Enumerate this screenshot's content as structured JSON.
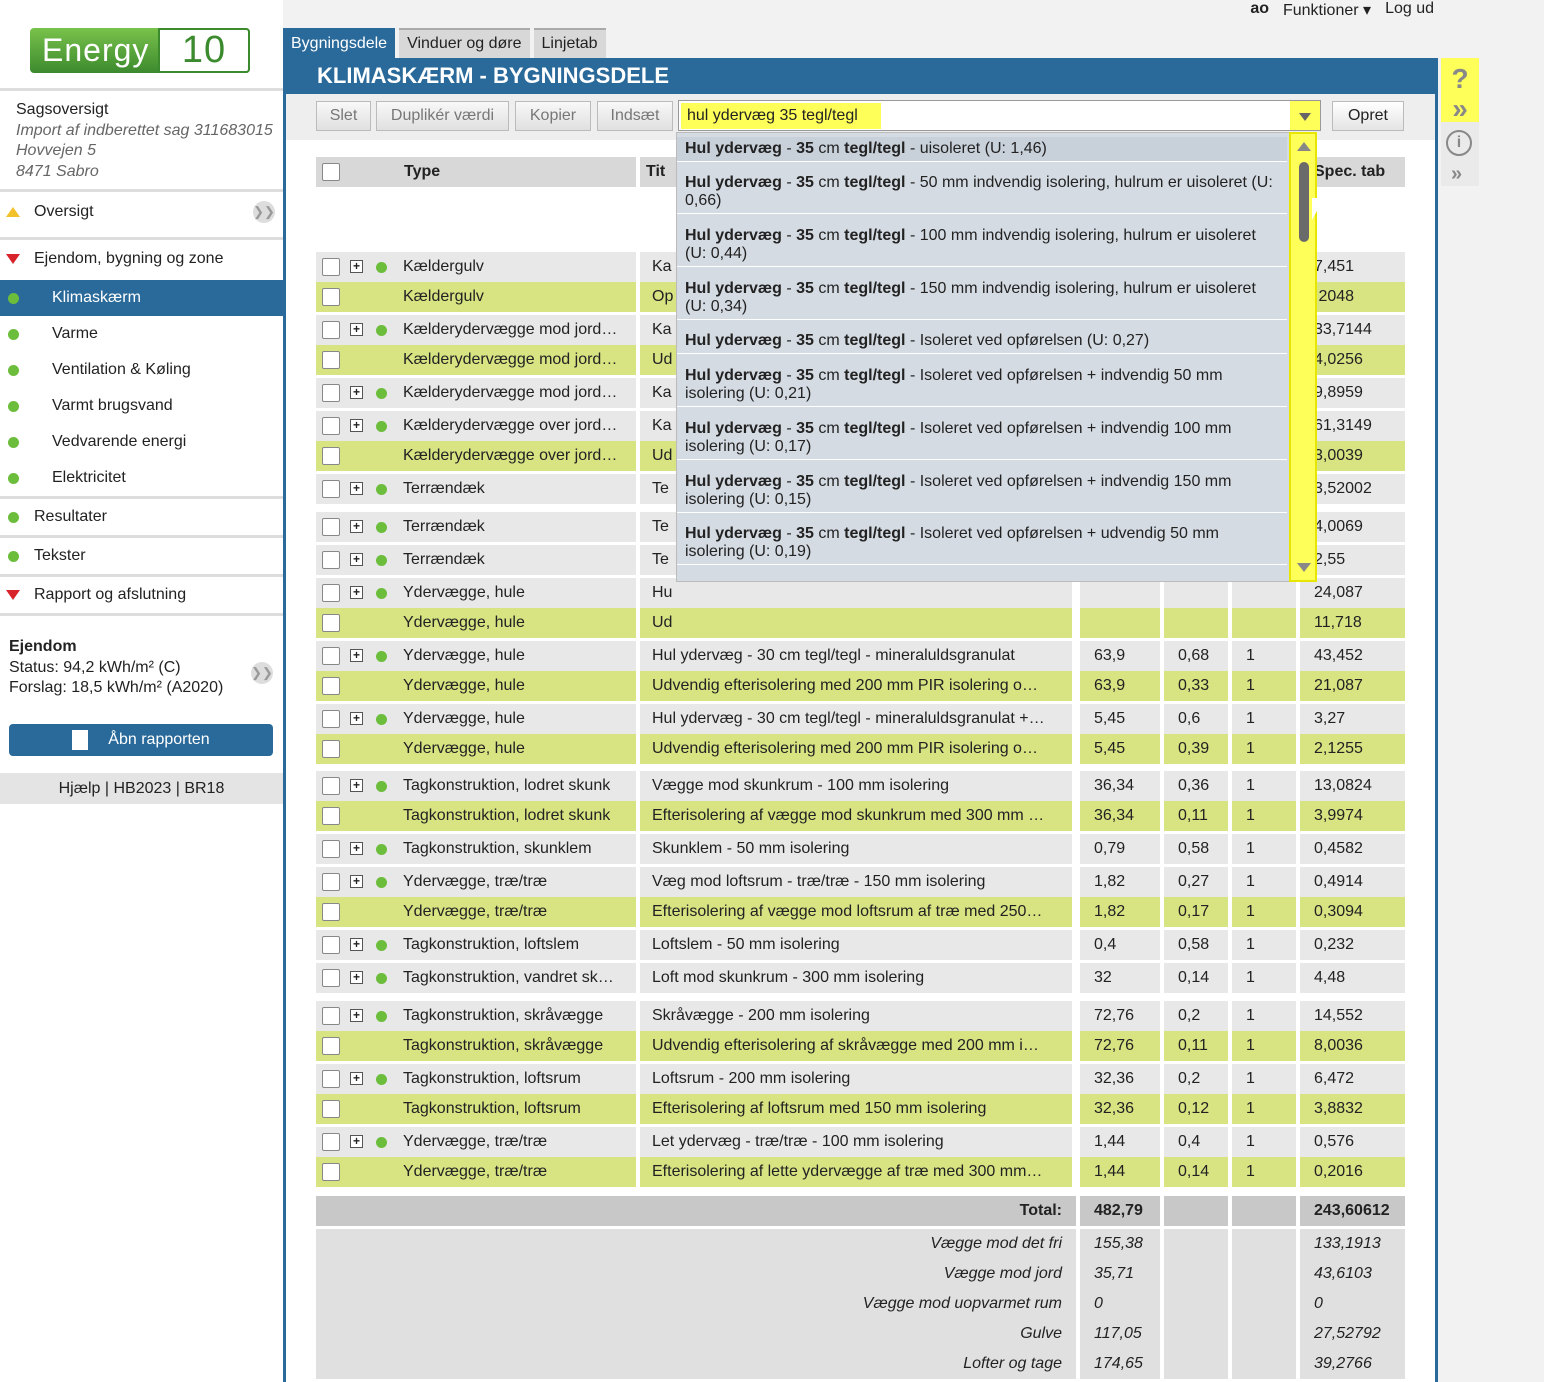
{
  "topbar": {
    "user": "ao",
    "functions": "Funktioner ▾",
    "logout": "Log ud"
  },
  "logo": {
    "word": "Energy",
    "num": "10"
  },
  "case": {
    "title": "Sagsoversigt",
    "line1": "Import af indberettet sag 311683015",
    "line2": "Hovvejen 5",
    "line3": "8471 Sabro"
  },
  "nav": {
    "overview": "Oversigt",
    "property": "Ejendom, bygning og zone",
    "climate": "Klimaskærm",
    "heat": "Varme",
    "vent": "Ventilation & Køling",
    "water": "Varmt brugsvand",
    "renew": "Vedvarende energi",
    "elec": "Elektricitet",
    "results": "Resultater",
    "texts": "Tekster",
    "report": "Rapport og afslutning"
  },
  "property_box": {
    "title": "Ejendom",
    "status": "Status: 94,2 kWh/m² (C)",
    "suggestion": "Forslag: 18,5 kWh/m² (A2020)"
  },
  "report_button": "Åbn rapporten",
  "help_links": "Hjælp | HB2023 | BR18",
  "tabs": [
    "Bygningsdele",
    "Vinduer og døre",
    "Linjetab"
  ],
  "page_title": "KLIMASKÆRM - BYGNINGSDELE",
  "toolbar": {
    "delete": "Slet",
    "duplicate": "Duplikér værdi",
    "copy": "Kopier",
    "paste": "Indsæt",
    "create": "Opret"
  },
  "search_value": "hul ydervæg 35 tegl/tegl",
  "table_headers": {
    "type": "Type",
    "title": "Tit",
    "spec": "Spec. tab"
  },
  "dropdown_options": [
    {
      "bold": "Hul ydervæg",
      "mid": "35",
      "rest_bold": "tegl/tegl",
      "tail": " - uisoleret (U: 1,46)"
    },
    {
      "bold": "Hul ydervæg",
      "mid": "35",
      "rest_bold": "tegl/tegl",
      "tail": " - 50 mm indvendig isolering, hulrum er uisoleret (U: 0,66)"
    },
    {
      "bold": "Hul ydervæg",
      "mid": "35",
      "rest_bold": "tegl/tegl",
      "tail": " - 100 mm indvendig isolering, hulrum er uisoleret (U: 0,44)"
    },
    {
      "bold": "Hul ydervæg",
      "mid": "35",
      "rest_bold": "tegl/tegl",
      "tail": " - 150 mm indvendig isolering, hulrum er uisoleret (U: 0,34)"
    },
    {
      "bold": "Hul ydervæg",
      "mid": "35",
      "rest_bold": "tegl/tegl",
      "tail": " - Isoleret ved opførelsen (U: 0,27)"
    },
    {
      "bold": "Hul ydervæg",
      "mid": "35",
      "rest_bold": "tegl/tegl",
      "tail": " - Isoleret ved opførelsen + indvendig 50 mm isolering (U: 0,21)"
    },
    {
      "bold": "Hul ydervæg",
      "mid": "35",
      "rest_bold": "tegl/tegl",
      "tail": " - Isoleret ved opførelsen + indvendig 100 mm isolering (U: 0,17)"
    },
    {
      "bold": "Hul ydervæg",
      "mid": "35",
      "rest_bold": "tegl/tegl",
      "tail": " - Isoleret ved opførelsen + indvendig 150 mm isolering (U: 0,15)"
    },
    {
      "bold": "Hul ydervæg",
      "mid": "35",
      "rest_bold": "tegl/tegl",
      "tail": " - Isoleret ved opførelsen + udvendig 50 mm isolering (U: 0,19)"
    }
  ],
  "rows": [
    {
      "t": "g",
      "plus": true,
      "type": "Kældergulv",
      "title": "Ka",
      "spec": "7,451"
    },
    {
      "t": "y",
      "plus": false,
      "type": "Kældergulv",
      "title": "Op",
      "spec": ",2048"
    },
    {
      "t": "g",
      "plus": true,
      "type": "Kælderydervægge mod jord…",
      "title": "Ka",
      "spec": "33,7144"
    },
    {
      "t": "y",
      "plus": false,
      "type": "Kælderydervægge mod jord…",
      "title": "Ud",
      "spec": "4,0256"
    },
    {
      "t": "g",
      "plus": true,
      "type": "Kælderydervægge mod jord…",
      "title": "Ka",
      "spec": "9,8959"
    },
    {
      "t": "g",
      "plus": true,
      "type": "Kælderydervægge over jord…",
      "title": "Ka",
      "spec": "61,3149"
    },
    {
      "t": "y",
      "plus": false,
      "type": "Kælderydervægge over jord…",
      "title": "Ud",
      "spec": "3,0039"
    },
    {
      "t": "g",
      "plus": true,
      "type": "Terrændæk",
      "title": "Te",
      "spec": "3,52002"
    },
    {
      "t": "g",
      "plus": true,
      "type": "Terrændæk",
      "title": "Te",
      "spec": "4,0069"
    },
    {
      "t": "g",
      "plus": true,
      "type": "Terrændæk",
      "title": "Te",
      "spec": "2,55"
    },
    {
      "t": "g",
      "plus": true,
      "type": "Ydervægge, hule",
      "title": "Hu",
      "spec": "24,087"
    },
    {
      "t": "y",
      "plus": false,
      "type": "Ydervægge, hule",
      "title": "Ud",
      "spec": "11,718"
    },
    {
      "t": "g",
      "plus": true,
      "type": "Ydervægge, hule",
      "title": "Hul ydervæg - 30 cm tegl/tegl - mineraluldsgranulat",
      "area": "63,9",
      "u": "0,68",
      "n": "1",
      "spec": "43,452"
    },
    {
      "t": "y",
      "plus": false,
      "type": "Ydervægge, hule",
      "title": "Udvendig efterisolering med 200 mm PIR isolering o…",
      "area": "63,9",
      "u": "0,33",
      "n": "1",
      "spec": "21,087"
    },
    {
      "t": "g",
      "plus": true,
      "type": "Ydervægge, hule",
      "title": "Hul ydervæg - 30 cm tegl/tegl - mineraluldsgranulat +…",
      "area": "5,45",
      "u": "0,6",
      "n": "1",
      "spec": "3,27"
    },
    {
      "t": "y",
      "plus": false,
      "type": "Ydervægge, hule",
      "title": "Udvendig efterisolering med 200 mm PIR isolering o…",
      "area": "5,45",
      "u": "0,39",
      "n": "1",
      "spec": "2,1255"
    },
    {
      "t": "g",
      "plus": true,
      "type": "Tagkonstruktion, lodret skunk",
      "title": "Vægge mod skunkrum - 100 mm isolering",
      "area": "36,34",
      "u": "0,36",
      "n": "1",
      "spec": "13,0824"
    },
    {
      "t": "y",
      "plus": false,
      "type": "Tagkonstruktion, lodret skunk",
      "title": "Efterisolering af vægge mod skunkrum med 300 mm …",
      "area": "36,34",
      "u": "0,11",
      "n": "1",
      "spec": "3,9974"
    },
    {
      "t": "g",
      "plus": true,
      "type": "Tagkonstruktion, skunklem",
      "title": "Skunklem - 50 mm isolering",
      "area": "0,79",
      "u": "0,58",
      "n": "1",
      "spec": "0,4582"
    },
    {
      "t": "g",
      "plus": true,
      "type": "Ydervægge, træ/træ",
      "title": "Væg mod loftsrum - træ/træ - 150 mm isolering",
      "area": "1,82",
      "u": "0,27",
      "n": "1",
      "spec": "0,4914"
    },
    {
      "t": "y",
      "plus": false,
      "type": "Ydervægge, træ/træ",
      "title": "Efterisolering af vægge mod loftsrum af træ med 250…",
      "area": "1,82",
      "u": "0,17",
      "n": "1",
      "spec": "0,3094"
    },
    {
      "t": "g",
      "plus": true,
      "type": "Tagkonstruktion, loftslem",
      "title": "Loftslem - 50 mm isolering",
      "area": "0,4",
      "u": "0,58",
      "n": "1",
      "spec": "0,232"
    },
    {
      "t": "g",
      "plus": true,
      "type": "Tagkonstruktion, vandret sk…",
      "title": "Loft mod skunkrum - 300 mm isolering",
      "area": "32",
      "u": "0,14",
      "n": "1",
      "spec": "4,48"
    },
    {
      "t": "g",
      "plus": true,
      "type": "Tagkonstruktion, skråvægge",
      "title": "Skråvægge - 200 mm isolering",
      "area": "72,76",
      "u": "0,2",
      "n": "1",
      "spec": "14,552"
    },
    {
      "t": "y",
      "plus": false,
      "type": "Tagkonstruktion, skråvægge",
      "title": "Udvendig efterisolering af skråvægge med 200 mm i…",
      "area": "72,76",
      "u": "0,11",
      "n": "1",
      "spec": "8,0036"
    },
    {
      "t": "g",
      "plus": true,
      "type": "Tagkonstruktion, loftsrum",
      "title": "Loftsrum - 200 mm isolering",
      "area": "32,36",
      "u": "0,2",
      "n": "1",
      "spec": "6,472"
    },
    {
      "t": "y",
      "plus": false,
      "type": "Tagkonstruktion, loftsrum",
      "title": "Efterisolering af loftsrum med 150 mm isolering",
      "area": "32,36",
      "u": "0,12",
      "n": "1",
      "spec": "3,8832"
    },
    {
      "t": "g",
      "plus": true,
      "type": "Ydervægge, træ/træ",
      "title": "Let ydervæg - træ/træ - 100 mm isolering",
      "area": "1,44",
      "u": "0,4",
      "n": "1",
      "spec": "0,576"
    },
    {
      "t": "y",
      "plus": false,
      "type": "Ydervægge, træ/træ",
      "title": "Efterisolering af lette ydervægge af træ med 300 mm…",
      "area": "1,44",
      "u": "0,14",
      "n": "1",
      "spec": "0,2016"
    }
  ],
  "summary": [
    {
      "label": "Total:",
      "area": "482,79",
      "spec": "243,60612"
    },
    {
      "label": "Vægge mod det fri",
      "area": "155,38",
      "spec": "133,1913"
    },
    {
      "label": "Vægge mod jord",
      "area": "35,71",
      "spec": "43,6103"
    },
    {
      "label": "Vægge mod uopvarmet rum",
      "area": "0",
      "spec": "0"
    },
    {
      "label": "Gulve",
      "area": "117,05",
      "spec": "27,52792"
    },
    {
      "label": "Lofter og tage",
      "area": "174,65",
      "spec": "39,2766"
    }
  ]
}
